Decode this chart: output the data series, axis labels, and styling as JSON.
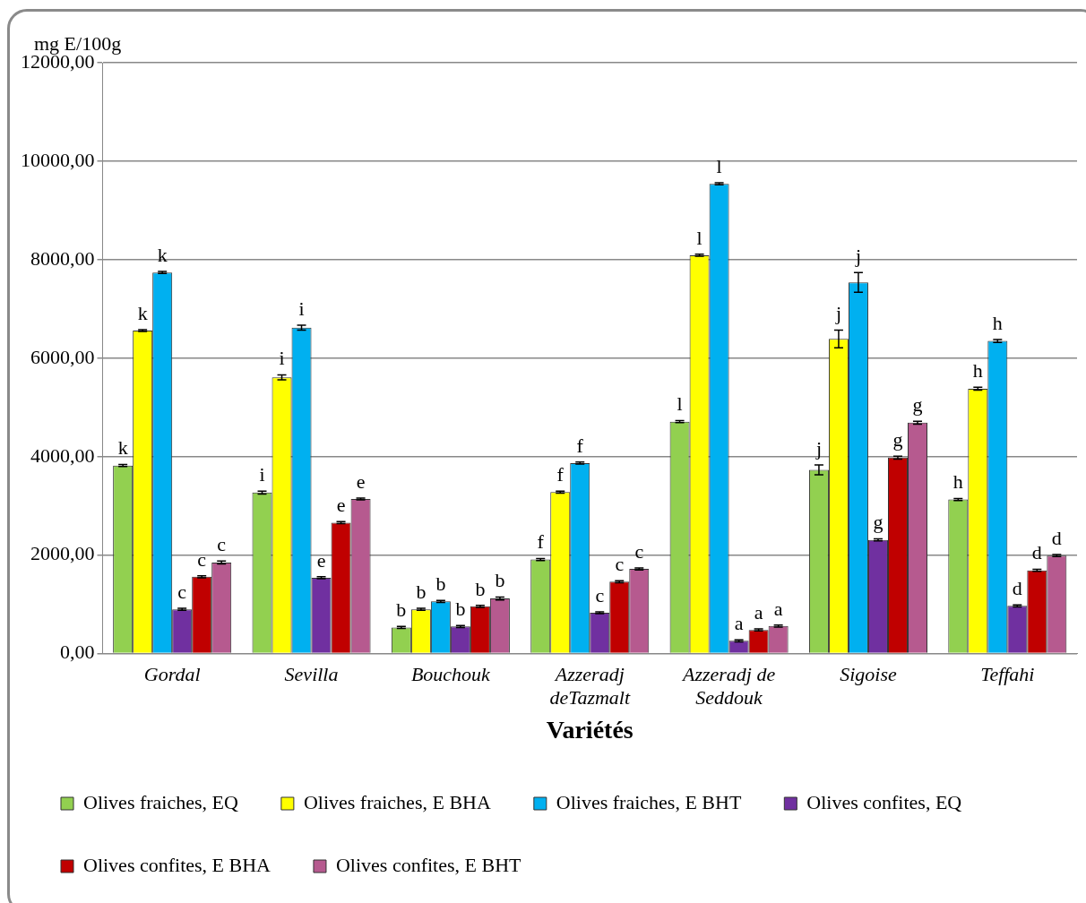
{
  "chart_data": {
    "type": "bar",
    "ylabel": "mg E/100g",
    "xlabel": "Variétés",
    "categories": [
      "Gordal",
      "Sevilla",
      "Bouchouk",
      "Azzeradj deTazmalt",
      "Azzeradj de Seddouk",
      "Sigoise",
      "Teffahi"
    ],
    "ylim": [
      0,
      12000
    ],
    "yticks": [
      {
        "value": 0,
        "label": "0,00"
      },
      {
        "value": 2000,
        "label": "2000,00"
      },
      {
        "value": 4000,
        "label": "4000,00"
      },
      {
        "value": 6000,
        "label": "6000,00"
      },
      {
        "value": 8000,
        "label": "8000,00"
      },
      {
        "value": 10000,
        "label": "10000,00"
      },
      {
        "value": 12000,
        "label": "12000,00"
      }
    ],
    "grid": "y",
    "legend": "bottom",
    "series": [
      {
        "name": "Olives fraiches, EQ",
        "color": "#92d050",
        "values": [
          3820,
          3270,
          530,
          1910,
          4710,
          3730,
          3130
        ],
        "errors": [
          20,
          30,
          20,
          20,
          20,
          100,
          20
        ],
        "value_labels": [
          "k",
          "i",
          "b",
          "f",
          "l",
          "j",
          "h"
        ]
      },
      {
        "name": "Olives fraiches, E BHA",
        "color": "#ffff00",
        "values": [
          6560,
          5610,
          900,
          3280,
          8090,
          6390,
          5380
        ],
        "errors": [
          20,
          50,
          20,
          20,
          20,
          180,
          30
        ],
        "value_labels": [
          "k",
          "i",
          "b",
          "f",
          "l",
          "j",
          "h"
        ]
      },
      {
        "name": "Olives fraiches, E BHT",
        "color": "#00b0f0",
        "values": [
          7740,
          6620,
          1060,
          3870,
          9540,
          7540,
          6350
        ],
        "errors": [
          20,
          50,
          20,
          20,
          20,
          200,
          30
        ],
        "value_labels": [
          "k",
          "i",
          "b",
          "f",
          "l",
          "j",
          "h"
        ]
      },
      {
        "name": "Olives confites, EQ",
        "color": "#7030a0",
        "values": [
          900,
          1540,
          550,
          830,
          260,
          2310,
          970
        ],
        "errors": [
          20,
          20,
          20,
          20,
          20,
          20,
          20
        ],
        "value_labels": [
          "c",
          "e",
          "b",
          "c",
          "a",
          "g",
          "d"
        ]
      },
      {
        "name": "Olives confites, E BHA",
        "color": "#c00000",
        "values": [
          1560,
          2660,
          960,
          1460,
          480,
          3980,
          1690
        ],
        "errors": [
          20,
          20,
          20,
          20,
          20,
          30,
          20
        ],
        "value_labels": [
          "c",
          "e",
          "b",
          "c",
          "a",
          "g",
          "d"
        ]
      },
      {
        "name": "Olives confites, E BHT",
        "color": "#b65a8f",
        "values": [
          1850,
          3140,
          1120,
          1720,
          560,
          4690,
          1990
        ],
        "errors": [
          30,
          20,
          30,
          20,
          20,
          30,
          20
        ],
        "value_labels": [
          "c",
          "e",
          "b",
          "c",
          "a",
          "g",
          "d"
        ]
      }
    ]
  }
}
